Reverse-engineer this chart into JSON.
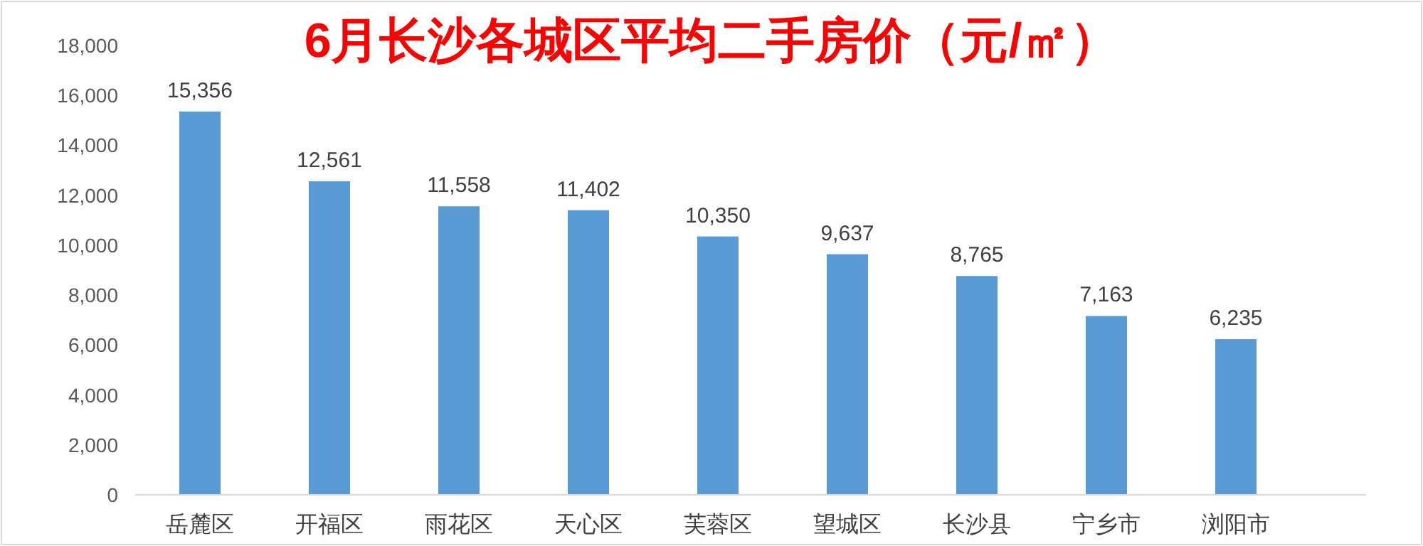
{
  "chart_data": {
    "type": "bar",
    "title": "6月长沙各城区平均二手房价（元/㎡）",
    "categories": [
      "岳麓区",
      "开福区",
      "雨花区",
      "天心区",
      "芙蓉区",
      "望城区",
      "长沙县",
      "宁乡市",
      "浏阳市"
    ],
    "values": [
      15356,
      12561,
      11558,
      11402,
      10350,
      9637,
      8765,
      7163,
      6235
    ],
    "value_labels": [
      "15,356",
      "12,561",
      "11,558",
      "11,402",
      "10,350",
      "9,637",
      "8,765",
      "7,163",
      "6,235"
    ],
    "color": "#5b9bd5",
    "ylim": [
      0,
      18000
    ],
    "yticks": [
      {
        "value": 0,
        "label": "0"
      },
      {
        "value": 2000,
        "label": "2,000"
      },
      {
        "value": 4000,
        "label": "4,000"
      },
      {
        "value": 6000,
        "label": "6,000"
      },
      {
        "value": 8000,
        "label": "8,000"
      },
      {
        "value": 10000,
        "label": "10,000"
      },
      {
        "value": 12000,
        "label": "12,000"
      },
      {
        "value": 14000,
        "label": "14,000"
      },
      {
        "value": 16000,
        "label": "16,000"
      },
      {
        "value": 18000,
        "label": "18,000"
      }
    ],
    "grid": false
  }
}
